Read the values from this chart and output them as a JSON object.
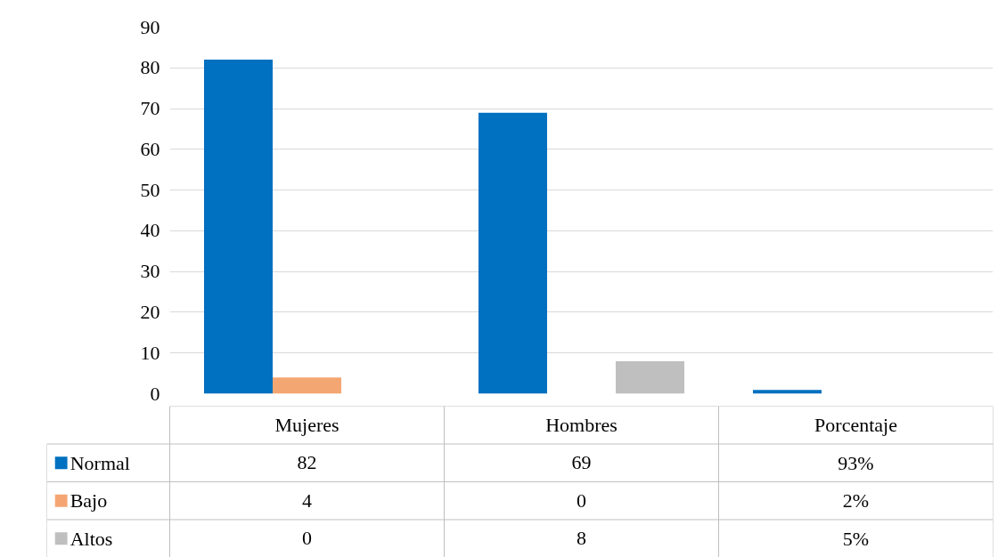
{
  "chart_data": {
    "type": "bar",
    "categories": [
      "Mujeres",
      "Hombres",
      "Porcentaje"
    ],
    "series": [
      {
        "name": "Normal",
        "color": "#0070c0",
        "values": [
          82,
          69,
          0.93
        ],
        "value_labels": [
          "82",
          "69",
          "93%"
        ]
      },
      {
        "name": "Bajo",
        "color": "#f4a672",
        "values": [
          4,
          0,
          null
        ],
        "value_labels": [
          "4",
          "0",
          "2%"
        ]
      },
      {
        "name": "Altos",
        "color": "#bfbfbf",
        "values": [
          0,
          8,
          null
        ],
        "value_labels": [
          "0",
          "8",
          "5%"
        ]
      }
    ],
    "ylim": [
      0,
      90
    ],
    "yticks": [
      0,
      10,
      20,
      30,
      40,
      50,
      60,
      70,
      80,
      90
    ],
    "grid": "y",
    "legend": "bottom"
  }
}
